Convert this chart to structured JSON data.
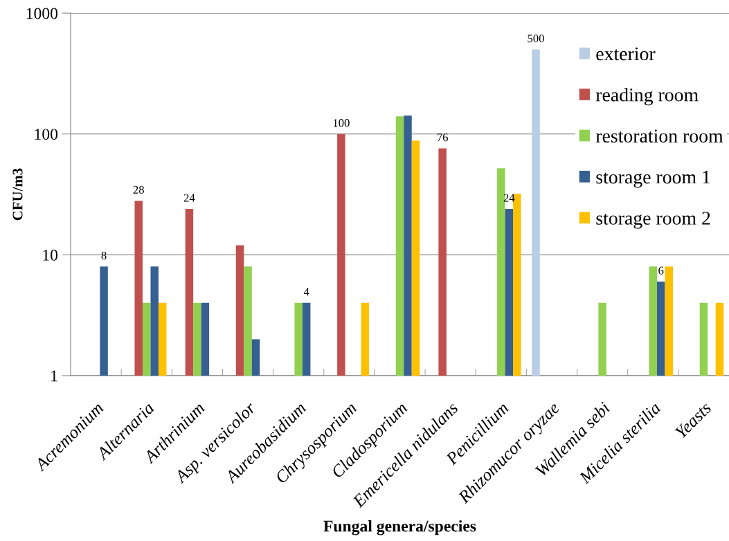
{
  "chart_data": {
    "type": "bar",
    "xlabel": "Fungal genera/species",
    "ylabel": "CFU/m3",
    "categories": [
      "Acremonium",
      "Alternaria",
      "Arthrinium",
      "Asp. versicolor",
      "Aureobasidium",
      "Chrysosporium",
      "Cladosporium",
      "Emericella nidulans",
      "Penicillium",
      "Rhizomucor oryzae",
      "Wallemia sebi",
      "Micelia sterilia",
      "Yeasts"
    ],
    "series": [
      {
        "name": "exterior",
        "color": "#b9cde5",
        "values": [
          null,
          null,
          null,
          null,
          null,
          null,
          null,
          null,
          null,
          500,
          null,
          null,
          null
        ],
        "value_labels": [
          null,
          null,
          null,
          null,
          null,
          null,
          null,
          null,
          null,
          "500",
          null,
          null,
          null
        ]
      },
      {
        "name": "reading room",
        "color": "#c0504d",
        "values": [
          null,
          28,
          24,
          12,
          null,
          100,
          null,
          76,
          null,
          null,
          null,
          null,
          null
        ],
        "value_labels": [
          null,
          "28",
          "24",
          null,
          null,
          "100",
          null,
          "76",
          null,
          null,
          null,
          null,
          null
        ]
      },
      {
        "name": "restoration room",
        "color": "#92d050",
        "values": [
          null,
          4,
          4,
          8,
          4,
          null,
          140,
          null,
          52,
          null,
          4,
          8,
          4
        ],
        "value_labels": [
          null,
          null,
          null,
          null,
          null,
          null,
          null,
          null,
          null,
          null,
          null,
          null,
          null
        ]
      },
      {
        "name": "storage room 1",
        "color": "#376092",
        "values": [
          8,
          8,
          4,
          2,
          4,
          null,
          142,
          null,
          24,
          null,
          null,
          6,
          null
        ],
        "value_labels": [
          "8",
          null,
          null,
          null,
          "4",
          null,
          null,
          null,
          "24",
          null,
          null,
          "6",
          null
        ]
      },
      {
        "name": "storage room 2",
        "color": "#ffc000",
        "values": [
          null,
          4,
          null,
          null,
          null,
          4,
          88,
          null,
          32,
          null,
          null,
          8,
          4
        ],
        "value_labels": [
          null,
          null,
          null,
          null,
          null,
          null,
          null,
          null,
          null,
          null,
          null,
          null,
          null
        ]
      }
    ],
    "log": true,
    "ylim": [
      1,
      1000
    ],
    "yticks": [
      1,
      10,
      100,
      1000
    ],
    "grid": "y",
    "legend": "top right"
  }
}
